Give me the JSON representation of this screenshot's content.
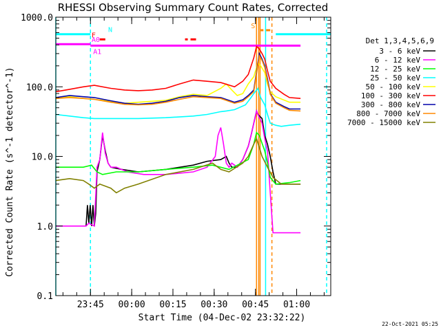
{
  "chart_data": {
    "type": "line",
    "title": "RHESSI Observing Summary Count Rates, Corrected",
    "xlabel": "Start Time (04-Dec-02 23:32:22)",
    "ylabel": "Corrected Count Rate (s^-1 detector^-1)",
    "y_scale": "log",
    "ylim": [
      0.1,
      1000
    ],
    "xlim_minutes_from_start": [
      0,
      100
    ],
    "x_ticks": [
      {
        "label": "23:45",
        "t": 12.6
      },
      {
        "label": "00:00",
        "t": 27.6
      },
      {
        "label": "00:15",
        "t": 42.6
      },
      {
        "label": "00:30",
        "t": 57.6
      },
      {
        "label": "00:45",
        "t": 72.6
      },
      {
        "label": "01:00",
        "t": 87.6
      }
    ],
    "y_ticks": [
      {
        "label": "1000.0",
        "v": 1000
      },
      {
        "label": "100.0",
        "v": 100
      },
      {
        "label": "10.0",
        "v": 10
      },
      {
        "label": "1.0",
        "v": 1
      },
      {
        "label": "0.1",
        "v": 0.1
      }
    ],
    "legend_title": "Det 1,3,4,5,6,9",
    "legend_position": "right",
    "series": [
      {
        "name": "3 - 6 keV",
        "color": "#000000",
        "points": [
          [
            11,
            1.0
          ],
          [
            11.5,
            2.0
          ],
          [
            12,
            1.1
          ],
          [
            12.5,
            2.0
          ],
          [
            13,
            1.0
          ],
          [
            13.5,
            2.0
          ],
          [
            14,
            1.0
          ],
          [
            14.5,
            1.5
          ],
          [
            15,
            6
          ],
          [
            16,
            9
          ],
          [
            17,
            20
          ],
          [
            18,
            12
          ],
          [
            19,
            8
          ],
          [
            20,
            7
          ],
          [
            24,
            6.5
          ],
          [
            30,
            6
          ],
          [
            40,
            6.5
          ],
          [
            50,
            7.5
          ],
          [
            55,
            8.5
          ],
          [
            60,
            9
          ],
          [
            62,
            10
          ],
          [
            63,
            8
          ],
          [
            64,
            7
          ],
          [
            66,
            7
          ],
          [
            68,
            9
          ],
          [
            70,
            14
          ],
          [
            71,
            20
          ],
          [
            72,
            30
          ],
          [
            73,
            45
          ],
          [
            73.5,
            40
          ],
          [
            75,
            35
          ],
          [
            76,
            20
          ],
          [
            77,
            15
          ],
          [
            78,
            10
          ],
          [
            79,
            6
          ],
          [
            80,
            4
          ],
          [
            85,
            4
          ],
          [
            89,
            4
          ]
        ]
      },
      {
        "name": "6 - 12 keV",
        "color": "#ff00ff",
        "points": [
          [
            0,
            1.0
          ],
          [
            11,
            1.0
          ],
          [
            12,
            1.1
          ],
          [
            14,
            1.0
          ],
          [
            15,
            7
          ],
          [
            16,
            9
          ],
          [
            17,
            22
          ],
          [
            18,
            11
          ],
          [
            19,
            8
          ],
          [
            20,
            7
          ],
          [
            22,
            7
          ],
          [
            26,
            6
          ],
          [
            32,
            5.5
          ],
          [
            40,
            5.5
          ],
          [
            50,
            6
          ],
          [
            55,
            7
          ],
          [
            58,
            10
          ],
          [
            59,
            20
          ],
          [
            60,
            26
          ],
          [
            61,
            15
          ],
          [
            62,
            8
          ],
          [
            63,
            7
          ],
          [
            64,
            8
          ],
          [
            66,
            7
          ],
          [
            68,
            9
          ],
          [
            70,
            14
          ],
          [
            71,
            20
          ],
          [
            72,
            30
          ],
          [
            73,
            45
          ],
          [
            73.5,
            40
          ],
          [
            75,
            30
          ],
          [
            76,
            18
          ],
          [
            77,
            12
          ],
          [
            78,
            3
          ],
          [
            79,
            0.8
          ],
          [
            89,
            0.8
          ]
        ]
      },
      {
        "name": "12 - 25 keV",
        "color": "#00ff00",
        "points": [
          [
            0,
            7
          ],
          [
            10,
            7
          ],
          [
            13,
            7.5
          ],
          [
            15,
            6
          ],
          [
            17,
            5.5
          ],
          [
            22,
            6
          ],
          [
            30,
            6
          ],
          [
            40,
            6.5
          ],
          [
            50,
            7
          ],
          [
            57,
            7.5
          ],
          [
            63,
            6.5
          ],
          [
            70,
            9
          ],
          [
            72,
            15
          ],
          [
            73,
            22
          ],
          [
            74,
            20
          ],
          [
            76,
            12
          ],
          [
            77,
            8
          ],
          [
            78,
            5
          ],
          [
            80,
            4
          ],
          [
            85,
            4.2
          ],
          [
            89,
            4.5
          ]
        ]
      },
      {
        "name": "25 - 50 keV",
        "color": "#00ffff",
        "points": [
          [
            0,
            40
          ],
          [
            5,
            38
          ],
          [
            10,
            36
          ],
          [
            14,
            35
          ],
          [
            20,
            35
          ],
          [
            30,
            35
          ],
          [
            40,
            36
          ],
          [
            50,
            38
          ],
          [
            55,
            40
          ],
          [
            60,
            44
          ],
          [
            62,
            45
          ],
          [
            65,
            47
          ],
          [
            69,
            55
          ],
          [
            71,
            70
          ],
          [
            72,
            80
          ],
          [
            73.5,
            95
          ],
          [
            74.5,
            70
          ],
          [
            76,
            55
          ],
          [
            77,
            40
          ],
          [
            78,
            30
          ],
          [
            80,
            28
          ],
          [
            82,
            27
          ],
          [
            85,
            28
          ],
          [
            89,
            29
          ]
        ]
      },
      {
        "name": "50 - 100 keV",
        "color": "#ffff00",
        "points": [
          [
            0,
            68
          ],
          [
            5,
            72
          ],
          [
            10,
            68
          ],
          [
            14,
            66
          ],
          [
            20,
            62
          ],
          [
            25,
            58
          ],
          [
            30,
            60
          ],
          [
            35,
            62
          ],
          [
            40,
            64
          ],
          [
            45,
            72
          ],
          [
            50,
            78
          ],
          [
            55,
            75
          ],
          [
            60,
            95
          ],
          [
            62,
            110
          ],
          [
            64,
            90
          ],
          [
            66,
            75
          ],
          [
            68,
            80
          ],
          [
            70,
            110
          ],
          [
            72,
            140
          ],
          [
            73.5,
            220
          ],
          [
            74.5,
            200
          ],
          [
            76,
            160
          ],
          [
            77,
            110
          ],
          [
            78,
            85
          ],
          [
            80,
            72
          ],
          [
            85,
            60
          ],
          [
            89,
            60
          ]
        ]
      },
      {
        "name": "100 - 300 keV",
        "color": "#ff0000",
        "points": [
          [
            0,
            85
          ],
          [
            5,
            92
          ],
          [
            10,
            100
          ],
          [
            14,
            105
          ],
          [
            20,
            95
          ],
          [
            25,
            90
          ],
          [
            30,
            88
          ],
          [
            35,
            90
          ],
          [
            40,
            95
          ],
          [
            45,
            110
          ],
          [
            50,
            125
          ],
          [
            55,
            120
          ],
          [
            60,
            115
          ],
          [
            65,
            100
          ],
          [
            68,
            120
          ],
          [
            70,
            150
          ],
          [
            72,
            260
          ],
          [
            73,
            380
          ],
          [
            74,
            350
          ],
          [
            75,
            300
          ],
          [
            76,
            250
          ],
          [
            77,
            170
          ],
          [
            78,
            120
          ],
          [
            80,
            95
          ],
          [
            83,
            78
          ],
          [
            85,
            70
          ],
          [
            89,
            68
          ]
        ]
      },
      {
        "name": "300 - 800 keV",
        "color": "#0000aa",
        "points": [
          [
            0,
            70
          ],
          [
            5,
            75
          ],
          [
            10,
            72
          ],
          [
            14,
            70
          ],
          [
            20,
            63
          ],
          [
            25,
            58
          ],
          [
            30,
            56
          ],
          [
            35,
            58
          ],
          [
            40,
            62
          ],
          [
            45,
            70
          ],
          [
            50,
            75
          ],
          [
            55,
            72
          ],
          [
            60,
            70
          ],
          [
            65,
            60
          ],
          [
            68,
            65
          ],
          [
            70,
            75
          ],
          [
            72,
            90
          ],
          [
            74,
            300
          ],
          [
            75,
            250
          ],
          [
            76,
            200
          ],
          [
            77,
            130
          ],
          [
            78,
            80
          ],
          [
            80,
            60
          ],
          [
            83,
            52
          ],
          [
            85,
            48
          ],
          [
            89,
            48
          ]
        ]
      },
      {
        "name": "800 - 7000 keV",
        "color": "#ff8800",
        "points": [
          [
            0,
            68
          ],
          [
            5,
            70
          ],
          [
            10,
            68
          ],
          [
            14,
            66
          ],
          [
            20,
            60
          ],
          [
            25,
            56
          ],
          [
            30,
            55
          ],
          [
            35,
            56
          ],
          [
            40,
            60
          ],
          [
            45,
            66
          ],
          [
            50,
            72
          ],
          [
            55,
            70
          ],
          [
            60,
            68
          ],
          [
            65,
            58
          ],
          [
            68,
            62
          ],
          [
            70,
            72
          ],
          [
            72,
            85
          ],
          [
            74,
            280
          ],
          [
            75,
            240
          ],
          [
            76,
            190
          ],
          [
            77,
            120
          ],
          [
            78,
            78
          ],
          [
            80,
            58
          ],
          [
            83,
            50
          ],
          [
            85,
            46
          ],
          [
            89,
            45
          ]
        ]
      },
      {
        "name": "7000 - 15000 keV",
        "color": "#808000",
        "points": [
          [
            0,
            4.5
          ],
          [
            5,
            4.8
          ],
          [
            10,
            4.5
          ],
          [
            12,
            4.0
          ],
          [
            14,
            3.5
          ],
          [
            16,
            4.0
          ],
          [
            20,
            3.5
          ],
          [
            22,
            3.0
          ],
          [
            25,
            3.5
          ],
          [
            30,
            4.0
          ],
          [
            40,
            5.5
          ],
          [
            50,
            6.5
          ],
          [
            57,
            8.0
          ],
          [
            60,
            6.5
          ],
          [
            63,
            6.0
          ],
          [
            68,
            8.0
          ],
          [
            70,
            10
          ],
          [
            72,
            15
          ],
          [
            73,
            18
          ],
          [
            75,
            10
          ],
          [
            77,
            7
          ],
          [
            79,
            5
          ],
          [
            82,
            4
          ],
          [
            85,
            4
          ],
          [
            89,
            4
          ]
        ]
      }
    ],
    "state_bars": [
      {
        "label": "N",
        "color": "#00ffff",
        "segments": [
          [
            0,
            12.6
          ],
          [
            80,
            100
          ]
        ],
        "level": 570
      },
      {
        "label": "F",
        "color": "#ff0000",
        "segments": [
          [
            16,
            18
          ],
          [
            47,
            48
          ],
          [
            49,
            51
          ]
        ],
        "level": 480
      },
      {
        "label": "A0",
        "color": "#ff00ff",
        "segments": [
          [
            0,
            12.6
          ]
        ],
        "level": 410
      },
      {
        "label": "A1",
        "color": "#ff00ff",
        "segments": [
          [
            12.6,
            89
          ]
        ],
        "level": 390
      },
      {
        "label": "S",
        "color": "#ff8800",
        "segments": [
          [
            74.5,
            75.5
          ],
          [
            76.5,
            78
          ]
        ],
        "level": 650
      }
    ],
    "vertical_markers": [
      {
        "t": 0,
        "color": "#00ffff",
        "style": "solid"
      },
      {
        "t": 12.6,
        "color": "#00ffff",
        "style": "dashed"
      },
      {
        "t": 73.0,
        "color": "#ff8800",
        "style": "solid"
      },
      {
        "t": 73.8,
        "color": "#ff8800",
        "style": "solid"
      },
      {
        "t": 74.3,
        "color": "#ff8800",
        "style": "solid"
      },
      {
        "t": 76.3,
        "color": "#00ffff",
        "style": "solid"
      },
      {
        "t": 78.6,
        "color": "#ff8800",
        "style": "dashed"
      },
      {
        "t": 98.5,
        "color": "#00ffff",
        "style": "dashed"
      }
    ],
    "grid": false
  },
  "footnote": "22-Oct-2021 05:25"
}
